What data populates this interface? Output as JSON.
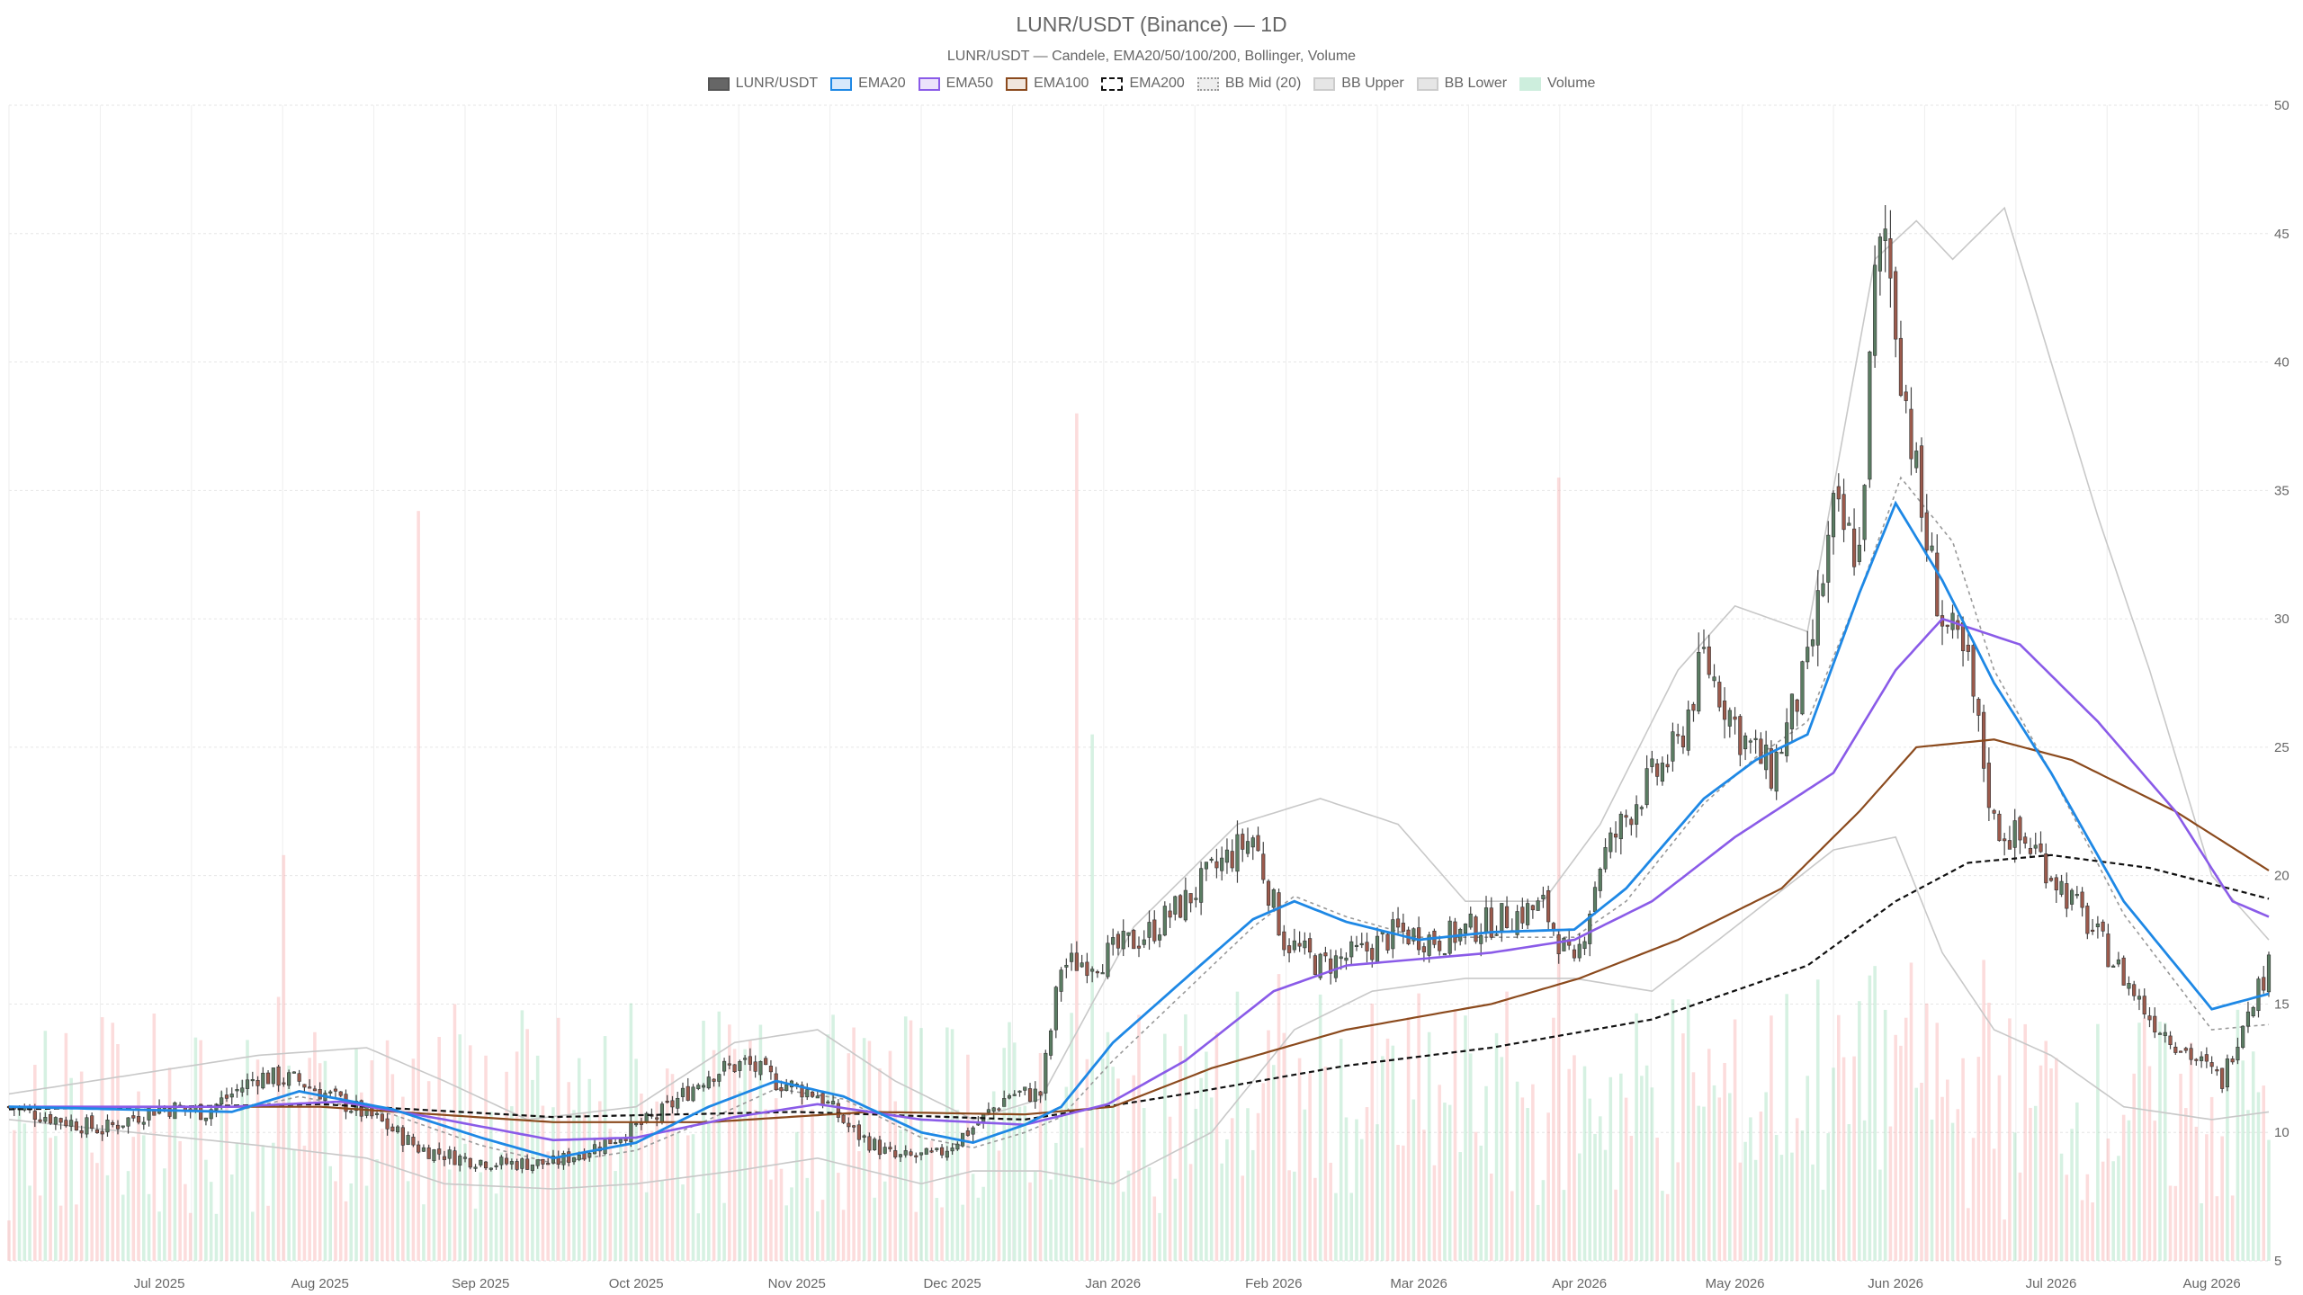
{
  "title": "LUNR/USDT (Binance) — 1D",
  "subtitle": "LUNR/USDT — Candele, EMA20/50/100/200, Bollinger, Volume",
  "legend": [
    {
      "key": "candles",
      "label": "LUNR/USDT",
      "fill": "#666666",
      "stroke": "#555555",
      "style": "solid"
    },
    {
      "key": "ema20",
      "label": "EMA20",
      "fill": "#d7e8fb",
      "stroke": "#1e88e5",
      "style": "solid"
    },
    {
      "key": "ema50",
      "label": "EMA50",
      "fill": "#ece2fb",
      "stroke": "#8a5be8",
      "style": "solid"
    },
    {
      "key": "ema100",
      "label": "EMA100",
      "fill": "#f1e6dc",
      "stroke": "#8b4a1d",
      "style": "solid"
    },
    {
      "key": "ema200",
      "label": "EMA200",
      "fill": "#ffffff",
      "stroke": "#111111",
      "style": "dashed"
    },
    {
      "key": "bbmid",
      "label": "BB Mid (20)",
      "fill": "#eeeeee",
      "stroke": "#999999",
      "style": "dotted"
    },
    {
      "key": "bbupper",
      "label": "BB Upper",
      "fill": "#e6e6e6",
      "stroke": "#cccccc",
      "style": "solid"
    },
    {
      "key": "bblower",
      "label": "BB Lower",
      "fill": "#e6e6e6",
      "stroke": "#cccccc",
      "style": "solid"
    },
    {
      "key": "volume",
      "label": "Volume",
      "fill": "#cdeedd",
      "stroke": "#cdeedd",
      "style": "solid"
    }
  ],
  "colors": {
    "up": "#5b7d63",
    "down": "#9c5a4c",
    "vol_up": "rgba(120,210,160,0.30)",
    "vol_down": "rgba(245,140,140,0.30)",
    "grid": "#e6e6e6",
    "ema20": "#1e88e5",
    "ema50": "#8a5be8",
    "ema100": "#8b4a1d",
    "ema200": "#111111",
    "bbmid": "#999999",
    "bbband": "#c8c8c8"
  },
  "chart_data": {
    "type": "candlestick",
    "title": "LUNR/USDT (Binance) — 1D",
    "subtitle": "LUNR/USDT — Candele, EMA20/50/100/200, Bollinger, Volume",
    "x_range": [
      "2025-06-02",
      "2026-08-12"
    ],
    "y_range": [
      5,
      50
    ],
    "y_ticks": [
      5,
      10,
      15,
      20,
      25,
      30,
      35,
      40,
      45,
      50
    ],
    "y_axis_position": "right",
    "x_ticks": [
      {
        "date": "2025-07-01",
        "label": "Jul 2025"
      },
      {
        "date": "2025-08-01",
        "label": "Aug 2025"
      },
      {
        "date": "2025-09-01",
        "label": "Sep 2025"
      },
      {
        "date": "2025-10-01",
        "label": "Oct 2025"
      },
      {
        "date": "2025-11-01",
        "label": "Nov 2025"
      },
      {
        "date": "2025-12-01",
        "label": "Dec 2025"
      },
      {
        "date": "2026-01-01",
        "label": "Jan 2026"
      },
      {
        "date": "2026-02-01",
        "label": "Feb 2026"
      },
      {
        "date": "2026-03-01",
        "label": "Mar 2026"
      },
      {
        "date": "2026-04-01",
        "label": "Apr 2026"
      },
      {
        "date": "2026-05-01",
        "label": "May 2026"
      },
      {
        "date": "2026-06-01",
        "label": "Jun 2026"
      },
      {
        "date": "2026-07-01",
        "label": "Jul 2026"
      },
      {
        "date": "2026-08-01",
        "label": "Aug 2026"
      }
    ],
    "legend_position": "top-center",
    "grid": true,
    "close_anchors": [
      [
        "2025-06-02",
        11.0
      ],
      [
        "2025-06-10",
        10.6
      ],
      [
        "2025-06-20",
        10.1
      ],
      [
        "2025-07-01",
        11.0
      ],
      [
        "2025-07-10",
        10.8
      ],
      [
        "2025-07-20",
        12.2
      ],
      [
        "2025-07-28",
        12.0
      ],
      [
        "2025-08-05",
        11.2
      ],
      [
        "2025-08-12",
        10.5
      ],
      [
        "2025-08-20",
        9.4
      ],
      [
        "2025-08-28",
        9.0
      ],
      [
        "2025-09-05",
        8.8
      ],
      [
        "2025-09-15",
        8.8
      ],
      [
        "2025-09-25",
        9.6
      ],
      [
        "2025-10-05",
        10.6
      ],
      [
        "2025-10-15",
        12.3
      ],
      [
        "2025-10-22",
        12.7
      ],
      [
        "2025-10-28",
        12.0
      ],
      [
        "2025-11-05",
        11.5
      ],
      [
        "2025-11-12",
        10.0
      ],
      [
        "2025-11-20",
        9.0
      ],
      [
        "2025-11-28",
        9.1
      ],
      [
        "2025-12-05",
        10.2
      ],
      [
        "2025-12-12",
        11.5
      ],
      [
        "2025-12-18",
        11.5
      ],
      [
        "2025-12-22",
        16.5
      ],
      [
        "2025-12-30",
        16.8
      ],
      [
        "2026-01-08",
        17.8
      ],
      [
        "2026-01-15",
        19.0
      ],
      [
        "2026-01-22",
        20.5
      ],
      [
        "2026-01-28",
        21.5
      ],
      [
        "2026-02-03",
        17.5
      ],
      [
        "2026-02-10",
        16.5
      ],
      [
        "2026-02-18",
        17.0
      ],
      [
        "2026-02-25",
        17.8
      ],
      [
        "2026-03-05",
        17.5
      ],
      [
        "2026-03-15",
        18.2
      ],
      [
        "2026-03-25",
        18.8
      ],
      [
        "2026-03-31",
        16.3
      ],
      [
        "2026-04-05",
        20.5
      ],
      [
        "2026-04-12",
        23.0
      ],
      [
        "2026-04-20",
        25.0
      ],
      [
        "2026-04-25",
        28.5
      ],
      [
        "2026-05-02",
        25.5
      ],
      [
        "2026-05-08",
        24.0
      ],
      [
        "2026-05-15",
        28.0
      ],
      [
        "2026-05-20",
        34.0
      ],
      [
        "2026-05-25",
        32.5
      ],
      [
        "2026-05-28",
        43.0
      ],
      [
        "2026-05-30",
        45.0
      ],
      [
        "2026-06-02",
        40.0
      ],
      [
        "2026-06-06",
        34.0
      ],
      [
        "2026-06-10",
        30.0
      ],
      [
        "2026-06-15",
        28.0
      ],
      [
        "2026-06-20",
        22.0
      ],
      [
        "2026-06-28",
        21.0
      ],
      [
        "2026-07-05",
        19.0
      ],
      [
        "2026-07-12",
        17.0
      ],
      [
        "2026-07-20",
        14.5
      ],
      [
        "2026-07-28",
        13.0
      ],
      [
        "2026-08-03",
        12.0
      ],
      [
        "2026-08-08",
        15.0
      ],
      [
        "2026-08-12",
        16.4
      ]
    ],
    "overlays": {
      "ema20": [
        [
          "2025-06-02",
          11.0
        ],
        [
          "2025-07-15",
          10.8
        ],
        [
          "2025-07-28",
          11.6
        ],
        [
          "2025-08-15",
          10.9
        ],
        [
          "2025-09-01",
          9.8
        ],
        [
          "2025-09-15",
          9.0
        ],
        [
          "2025-10-01",
          9.6
        ],
        [
          "2025-10-15",
          11.0
        ],
        [
          "2025-10-28",
          12.0
        ],
        [
          "2025-11-10",
          11.4
        ],
        [
          "2025-11-25",
          10.0
        ],
        [
          "2025-12-05",
          9.6
        ],
        [
          "2025-12-15",
          10.3
        ],
        [
          "2025-12-22",
          11.0
        ],
        [
          "2026-01-01",
          13.5
        ],
        [
          "2026-01-15",
          16.0
        ],
        [
          "2026-01-28",
          18.3
        ],
        [
          "2026-02-05",
          19.0
        ],
        [
          "2026-02-15",
          18.2
        ],
        [
          "2026-03-01",
          17.5
        ],
        [
          "2026-03-15",
          17.8
        ],
        [
          "2026-03-31",
          17.9
        ],
        [
          "2026-04-10",
          19.5
        ],
        [
          "2026-04-25",
          23.0
        ],
        [
          "2026-05-05",
          24.5
        ],
        [
          "2026-05-15",
          25.5
        ],
        [
          "2026-05-25",
          31.0
        ],
        [
          "2026-06-01",
          34.5
        ],
        [
          "2026-06-10",
          31.5
        ],
        [
          "2026-06-20",
          27.5
        ],
        [
          "2026-07-01",
          24.0
        ],
        [
          "2026-07-15",
          19.0
        ],
        [
          "2026-08-01",
          14.8
        ],
        [
          "2026-08-12",
          15.4
        ]
      ],
      "ema50": [
        [
          "2025-06-02",
          11.0
        ],
        [
          "2025-07-15",
          11.0
        ],
        [
          "2025-08-05",
          11.2
        ],
        [
          "2025-08-25",
          10.5
        ],
        [
          "2025-09-15",
          9.7
        ],
        [
          "2025-10-01",
          9.8
        ],
        [
          "2025-10-20",
          10.6
        ],
        [
          "2025-11-05",
          11.1
        ],
        [
          "2025-11-25",
          10.5
        ],
        [
          "2025-12-15",
          10.3
        ],
        [
          "2025-12-31",
          11.1
        ],
        [
          "2026-01-15",
          12.8
        ],
        [
          "2026-02-01",
          15.5
        ],
        [
          "2026-02-15",
          16.5
        ],
        [
          "2026-03-15",
          17.0
        ],
        [
          "2026-03-31",
          17.5
        ],
        [
          "2026-04-15",
          19.0
        ],
        [
          "2026-05-01",
          21.5
        ],
        [
          "2026-05-20",
          24.0
        ],
        [
          "2026-06-01",
          28.0
        ],
        [
          "2026-06-10",
          30.0
        ],
        [
          "2026-06-25",
          29.0
        ],
        [
          "2026-07-10",
          26.0
        ],
        [
          "2026-07-25",
          22.5
        ],
        [
          "2026-08-05",
          19.0
        ],
        [
          "2026-08-12",
          18.4
        ]
      ],
      "ema100": [
        [
          "2025-06-02",
          11.0
        ],
        [
          "2025-08-01",
          11.0
        ],
        [
          "2025-09-15",
          10.4
        ],
        [
          "2025-10-15",
          10.4
        ],
        [
          "2025-11-15",
          10.8
        ],
        [
          "2025-12-15",
          10.7
        ],
        [
          "2026-01-01",
          11.0
        ],
        [
          "2026-01-20",
          12.5
        ],
        [
          "2026-02-15",
          14.0
        ],
        [
          "2026-03-15",
          15.0
        ],
        [
          "2026-04-01",
          16.0
        ],
        [
          "2026-04-20",
          17.5
        ],
        [
          "2026-05-10",
          19.5
        ],
        [
          "2026-05-25",
          22.5
        ],
        [
          "2026-06-05",
          25.0
        ],
        [
          "2026-06-20",
          25.3
        ],
        [
          "2026-07-05",
          24.5
        ],
        [
          "2026-07-25",
          22.5
        ],
        [
          "2026-08-12",
          20.2
        ]
      ],
      "ema200": [
        [
          "2025-06-02",
          10.9
        ],
        [
          "2025-08-01",
          11.1
        ],
        [
          "2025-09-15",
          10.6
        ],
        [
          "2025-11-01",
          10.8
        ],
        [
          "2025-12-15",
          10.5
        ],
        [
          "2026-01-15",
          11.5
        ],
        [
          "2026-02-15",
          12.6
        ],
        [
          "2026-03-15",
          13.3
        ],
        [
          "2026-04-15",
          14.4
        ],
        [
          "2026-05-15",
          16.5
        ],
        [
          "2026-06-01",
          19.0
        ],
        [
          "2026-06-15",
          20.5
        ],
        [
          "2026-07-01",
          20.8
        ],
        [
          "2026-07-20",
          20.3
        ],
        [
          "2026-08-12",
          19.1
        ]
      ],
      "bb_mid": [
        [
          "2025-06-02",
          11.0
        ],
        [
          "2025-07-15",
          10.8
        ],
        [
          "2025-07-28",
          11.4
        ],
        [
          "2025-08-15",
          10.7
        ],
        [
          "2025-09-01",
          9.5
        ],
        [
          "2025-09-15",
          8.8
        ],
        [
          "2025-10-01",
          9.3
        ],
        [
          "2025-10-15",
          10.5
        ],
        [
          "2025-10-28",
          11.7
        ],
        [
          "2025-11-10",
          11.3
        ],
        [
          "2025-11-25",
          9.8
        ],
        [
          "2025-12-05",
          9.4
        ],
        [
          "2025-12-15",
          10.0
        ],
        [
          "2025-12-22",
          10.6
        ],
        [
          "2026-01-01",
          12.8
        ],
        [
          "2026-01-15",
          15.5
        ],
        [
          "2026-01-28",
          18.0
        ],
        [
          "2026-02-05",
          19.2
        ],
        [
          "2026-02-15",
          18.4
        ],
        [
          "2026-03-01",
          17.6
        ],
        [
          "2026-03-15",
          17.6
        ],
        [
          "2026-03-31",
          17.6
        ],
        [
          "2026-04-10",
          19.0
        ],
        [
          "2026-04-25",
          22.8
        ],
        [
          "2026-05-05",
          24.6
        ],
        [
          "2026-05-15",
          26.0
        ],
        [
          "2026-05-25",
          31.0
        ],
        [
          "2026-06-02",
          35.5
        ],
        [
          "2026-06-12",
          33.0
        ],
        [
          "2026-06-20",
          28.0
        ],
        [
          "2026-07-01",
          24.0
        ],
        [
          "2026-07-15",
          18.5
        ],
        [
          "2026-08-01",
          14.0
        ],
        [
          "2026-08-12",
          14.2
        ]
      ],
      "bb_upper": [
        [
          "2025-06-02",
          11.5
        ],
        [
          "2025-07-20",
          13.0
        ],
        [
          "2025-08-10",
          13.3
        ],
        [
          "2025-08-25",
          12.0
        ],
        [
          "2025-09-10",
          10.5
        ],
        [
          "2025-10-01",
          11.0
        ],
        [
          "2025-10-20",
          13.5
        ],
        [
          "2025-11-05",
          14.0
        ],
        [
          "2025-11-20",
          12.0
        ],
        [
          "2025-12-05",
          10.5
        ],
        [
          "2025-12-18",
          11.3
        ],
        [
          "2026-01-05",
          18.0
        ],
        [
          "2026-01-25",
          22.0
        ],
        [
          "2026-02-10",
          23.0
        ],
        [
          "2026-02-25",
          22.0
        ],
        [
          "2026-03-10",
          19.0
        ],
        [
          "2026-03-25",
          19.0
        ],
        [
          "2026-04-05",
          22.0
        ],
        [
          "2026-04-20",
          28.0
        ],
        [
          "2026-05-01",
          30.5
        ],
        [
          "2026-05-15",
          29.5
        ],
        [
          "2026-05-28",
          44.0
        ],
        [
          "2026-06-05",
          45.5
        ],
        [
          "2026-06-12",
          44.0
        ],
        [
          "2026-06-22",
          46.0
        ],
        [
          "2026-07-01",
          40.0
        ],
        [
          "2026-07-10",
          34.0
        ],
        [
          "2026-07-20",
          28.0
        ],
        [
          "2026-08-01",
          20.0
        ],
        [
          "2026-08-12",
          17.5
        ]
      ],
      "bb_lower": [
        [
          "2025-06-02",
          10.5
        ],
        [
          "2025-07-20",
          9.5
        ],
        [
          "2025-08-10",
          9.0
        ],
        [
          "2025-08-25",
          8.0
        ],
        [
          "2025-09-15",
          7.8
        ],
        [
          "2025-10-01",
          8.0
        ],
        [
          "2025-10-20",
          8.5
        ],
        [
          "2025-11-05",
          9.0
        ],
        [
          "2025-11-25",
          8.0
        ],
        [
          "2025-12-05",
          8.5
        ],
        [
          "2025-12-18",
          8.5
        ],
        [
          "2026-01-01",
          8.0
        ],
        [
          "2026-01-20",
          10.0
        ],
        [
          "2026-02-05",
          14.0
        ],
        [
          "2026-02-20",
          15.5
        ],
        [
          "2026-03-10",
          16.0
        ],
        [
          "2026-03-31",
          16.0
        ],
        [
          "2026-04-15",
          15.5
        ],
        [
          "2026-05-01",
          18.0
        ],
        [
          "2026-05-20",
          21.0
        ],
        [
          "2026-06-01",
          21.5
        ],
        [
          "2026-06-10",
          17.0
        ],
        [
          "2026-06-20",
          14.0
        ],
        [
          "2026-07-01",
          13.0
        ],
        [
          "2026-07-15",
          11.0
        ],
        [
          "2026-08-01",
          10.5
        ],
        [
          "2026-08-12",
          10.8
        ]
      ]
    },
    "volume_axis_max": 50,
    "volume_spikes": [
      [
        "2025-08-20",
        34.2
      ],
      [
        "2025-12-25",
        38.0
      ],
      [
        "2026-03-28",
        35.5
      ],
      [
        "2025-07-25",
        20.8
      ],
      [
        "2025-12-28",
        25.5
      ]
    ]
  }
}
